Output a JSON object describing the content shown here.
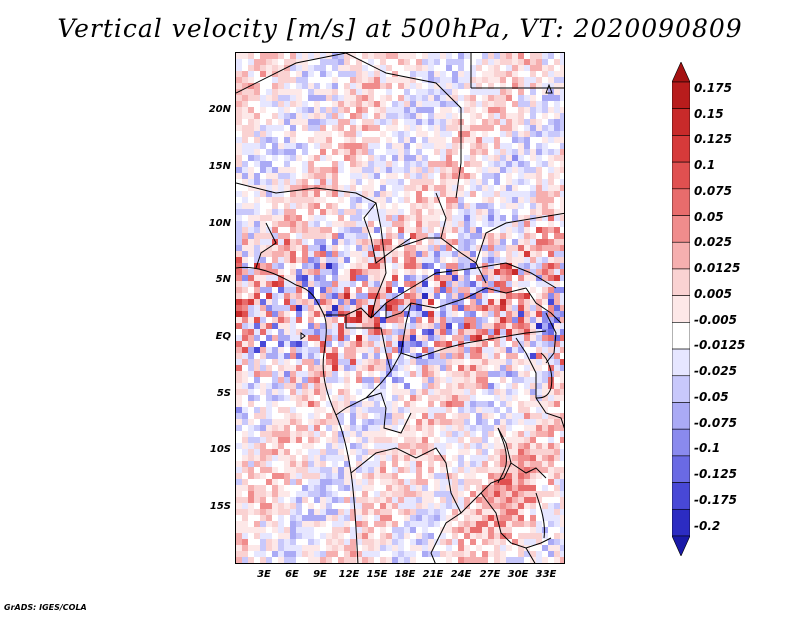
{
  "title": "Vertical velocity [m/s] at 500hPa, VT: 2020090809",
  "footer": "GrADS: IGES/COLA",
  "map": {
    "y_axis_labels": [
      "20N",
      "15N",
      "10N",
      "5N",
      "EQ",
      "5S",
      "10S",
      "15S"
    ],
    "x_axis_labels": [
      "3E",
      "6E",
      "9E",
      "12E",
      "15E",
      "18E",
      "21E",
      "24E",
      "27E",
      "30E",
      "33E"
    ]
  },
  "colorbar": {
    "labels": [
      "0.175",
      "0.15",
      "0.125",
      "0.1",
      "0.075",
      "0.05",
      "0.025",
      "0.0125",
      "0.005",
      "-0.005",
      "-0.0125",
      "-0.025",
      "-0.05",
      "-0.075",
      "-0.1",
      "-0.125",
      "-0.175",
      "-0.2"
    ],
    "colors": [
      "#a51212",
      "#b81c1c",
      "#c82a2a",
      "#d63a3a",
      "#e05050",
      "#e86c6c",
      "#f08c8c",
      "#f6afaf",
      "#fad2d2",
      "#fde8e8",
      "#ffffff",
      "#e6e6ff",
      "#c8c8fb",
      "#aaaaf5",
      "#8a8aee",
      "#6a6ae4",
      "#4848d6",
      "#2c2cc2",
      "#1a1aa8"
    ]
  }
}
